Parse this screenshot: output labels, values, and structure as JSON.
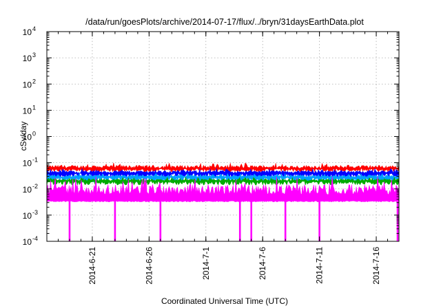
{
  "chart_data": {
    "type": "line",
    "title": "/data/run/goesPlots/archive/2014-07-17/flux/../bryn/31daysEarthData.plot",
    "xlabel": "Coordinated Universal Time (UTC)",
    "ylabel": "cSv/day",
    "yscale": "log",
    "ylim": [
      0.0001,
      10000
    ],
    "xlim": [
      "2014-06-17",
      "2014-07-18"
    ],
    "grid": true,
    "yticks": [
      {
        "base": "10",
        "exp": "-4"
      },
      {
        "base": "10",
        "exp": "-3"
      },
      {
        "base": "10",
        "exp": "-2"
      },
      {
        "base": "10",
        "exp": "-1"
      },
      {
        "base": "10",
        "exp": "0"
      },
      {
        "base": "10",
        "exp": "1"
      },
      {
        "base": "10",
        "exp": "2"
      },
      {
        "base": "10",
        "exp": "3"
      },
      {
        "base": "10",
        "exp": "4"
      }
    ],
    "xticks": [
      "2014-6-21",
      "2014-6-26",
      "2014-7-1",
      "2014-7-6",
      "2014-7-11",
      "2014-7-16"
    ],
    "series": [
      {
        "color": "#ff0000",
        "typical": 0.06,
        "min": 0.045,
        "max": 0.1
      },
      {
        "color": "#0000ff",
        "typical": 0.04,
        "min": 0.025,
        "max": 0.06
      },
      {
        "color": "#00a0ff",
        "typical": 0.028,
        "min": 0.018,
        "max": 0.04
      },
      {
        "color": "#00aa00",
        "typical": 0.02,
        "min": 0.014,
        "max": 0.028
      },
      {
        "color": "#ff00ff",
        "typical": 0.006,
        "min": 0.0035,
        "max": 0.03
      }
    ],
    "dropouts": [
      "2014-06-19",
      "2014-06-23",
      "2014-06-27",
      "2014-07-04",
      "2014-07-05",
      "2014-07-08",
      "2014-07-11",
      "2014-07-18"
    ]
  }
}
